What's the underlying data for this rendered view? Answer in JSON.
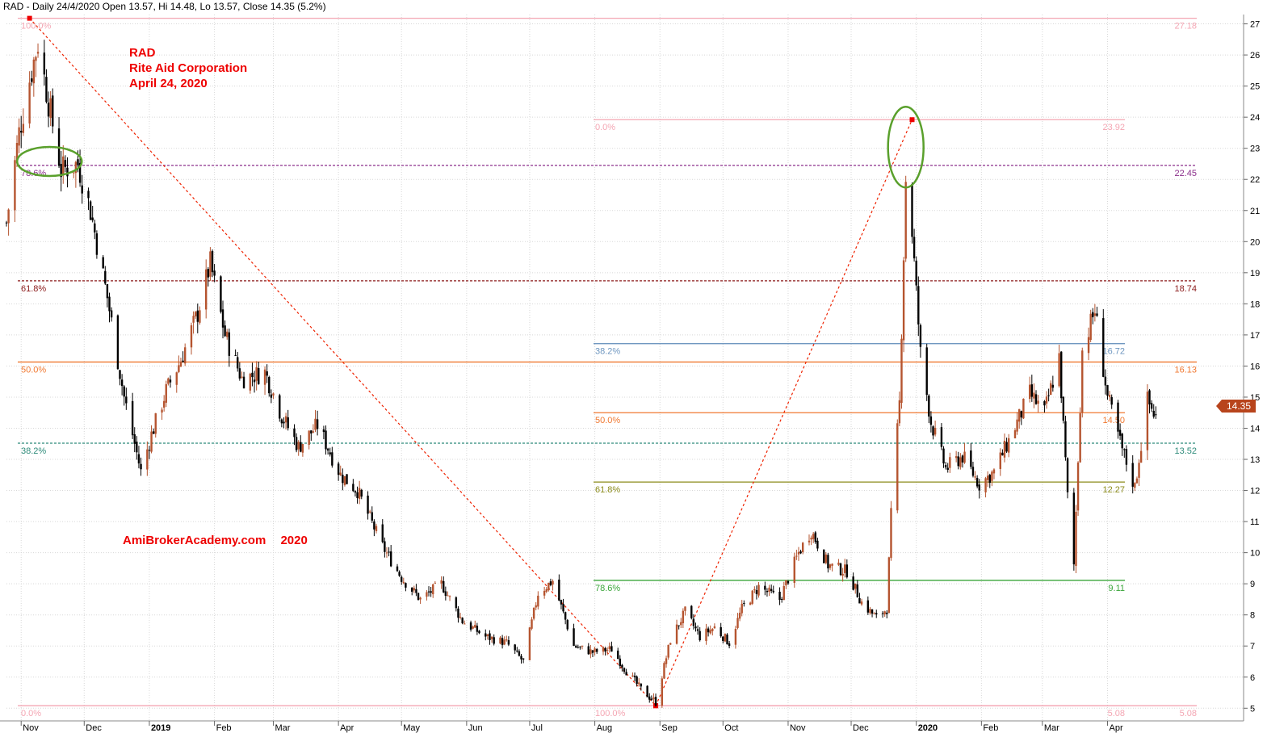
{
  "header": {
    "text": "RAD - Daily 24/4/2020 Open 13.57, Hi 14.48, Lo 13.57, Close 14.35 (5.2%)"
  },
  "annotation": {
    "symbol": "RAD",
    "company": "Rite Aid Corporation",
    "date": "April 24, 2020"
  },
  "watermark": {
    "site": "AmiBrokerAcademy.com",
    "year": "2020"
  },
  "last_price_label": "14.35",
  "colors": {
    "up": "#b5542f",
    "down": "#000000",
    "grid": "#d8d8d8",
    "trend_line": "#ee2200",
    "circle": "#5aa02c",
    "price_tag": "#b8441c"
  },
  "chart_data": {
    "type": "candlestick",
    "yaxis_ticks": [
      "5",
      "6",
      "7",
      "8",
      "9",
      "10",
      "11",
      "12",
      "13",
      "14",
      "15",
      "16",
      "17",
      "18",
      "19",
      "20",
      "21",
      "22",
      "23",
      "24",
      "25",
      "26",
      "27"
    ],
    "ylim": [
      4.8,
      27.3
    ],
    "xaxis_ticks": [
      "Nov",
      "Dec",
      "2019",
      "Feb",
      "Mar",
      "Apr",
      "May",
      "Jun",
      "Jul",
      "Aug",
      "Sep",
      "Oct",
      "Nov",
      "Dec",
      "2020",
      "Feb",
      "Mar",
      "Apr"
    ],
    "bold_ticks": [
      "2019",
      "2020"
    ],
    "xlim": [
      "2018-10-25",
      "2020-05-25"
    ],
    "fib_set_1": {
      "from": {
        "date": "2018-11-05",
        "price": 27.18
      },
      "to": {
        "date": "2019-08-30",
        "price": 5.08
      },
      "levels": [
        {
          "pct": "100.0%",
          "price": "27.18",
          "color": "#f4a6b3"
        },
        {
          "pct": "78.6%",
          "price": "22.45",
          "color": "#8b2f8b"
        },
        {
          "pct": "61.8%",
          "price": "18.74",
          "color": "#8b1a1a"
        },
        {
          "pct": "50.0%",
          "price": "16.13",
          "color": "#f07830"
        },
        {
          "pct": "38.2%",
          "price": "13.52",
          "color": "#2e8b7a"
        },
        {
          "pct": "0.0%",
          "price": "5.08",
          "color": "#f4a6b3"
        }
      ]
    },
    "fib_set_2": {
      "from": {
        "date": "2019-08-30",
        "price": 5.08
      },
      "to": {
        "date": "2019-12-30",
        "price": 23.92
      },
      "levels": [
        {
          "pct": "0.0%",
          "price": "23.92",
          "color": "#f4a6b3"
        },
        {
          "pct": "38.2%",
          "price": "16.72",
          "color": "#6f97c0"
        },
        {
          "pct": "50.0%",
          "price": "14.50",
          "color": "#f07830"
        },
        {
          "pct": "61.8%",
          "price": "12.27",
          "color": "#8b8b1a"
        },
        {
          "pct": "78.6%",
          "price": "9.11",
          "color": "#3aa53a"
        },
        {
          "pct": "100.0%",
          "price": "5.08",
          "color": "#f4a6b3"
        }
      ]
    },
    "highlight_circles": [
      {
        "date": "2018-11-16",
        "price": 22.5
      },
      {
        "date": "2019-12-27",
        "price": 22.7
      }
    ],
    "price_path": [
      [
        "2018-10-25",
        20.6
      ],
      [
        "2018-10-31",
        23.5
      ],
      [
        "2018-11-05",
        25.2
      ],
      [
        "2018-11-09",
        26.4
      ],
      [
        "2018-11-14",
        24.5
      ],
      [
        "2018-11-20",
        22.3
      ],
      [
        "2018-11-28",
        22.5
      ],
      [
        "2018-12-04",
        21.0
      ],
      [
        "2018-12-12",
        18.2
      ],
      [
        "2018-12-20",
        15.0
      ],
      [
        "2018-12-28",
        12.6
      ],
      [
        "2019-01-02",
        13.8
      ],
      [
        "2019-01-09",
        15.2
      ],
      [
        "2019-01-16",
        16.2
      ],
      [
        "2019-01-24",
        17.7
      ],
      [
        "2019-01-30",
        19.3
      ],
      [
        "2019-02-06",
        17.0
      ],
      [
        "2019-02-14",
        15.6
      ],
      [
        "2019-02-25",
        15.8
      ],
      [
        "2019-03-05",
        14.4
      ],
      [
        "2019-03-13",
        13.4
      ],
      [
        "2019-03-22",
        14.1
      ],
      [
        "2019-04-02",
        12.5
      ],
      [
        "2019-04-10",
        12.0
      ],
      [
        "2019-04-22",
        10.2
      ],
      [
        "2019-05-01",
        9.2
      ],
      [
        "2019-05-10",
        8.5
      ],
      [
        "2019-05-20",
        9.0
      ],
      [
        "2019-05-30",
        7.8
      ],
      [
        "2019-06-10",
        7.3
      ],
      [
        "2019-06-20",
        7.1
      ],
      [
        "2019-06-28",
        6.5
      ],
      [
        "2019-07-05",
        8.7
      ],
      [
        "2019-07-12",
        9.1
      ],
      [
        "2019-07-22",
        7.0
      ],
      [
        "2019-07-31",
        6.8
      ],
      [
        "2019-08-09",
        6.9
      ],
      [
        "2019-08-16",
        6.2
      ],
      [
        "2019-08-23",
        5.6
      ],
      [
        "2019-08-30",
        5.2
      ],
      [
        "2019-09-06",
        7.2
      ],
      [
        "2019-09-13",
        8.1
      ],
      [
        "2019-09-20",
        7.3
      ],
      [
        "2019-09-27",
        7.6
      ],
      [
        "2019-10-04",
        7.1
      ],
      [
        "2019-10-10",
        8.2
      ],
      [
        "2019-10-18",
        8.9
      ],
      [
        "2019-10-28",
        8.5
      ],
      [
        "2019-11-06",
        10.0
      ],
      [
        "2019-11-12",
        10.7
      ],
      [
        "2019-11-20",
        9.6
      ],
      [
        "2019-11-29",
        9.4
      ],
      [
        "2019-12-06",
        8.4
      ],
      [
        "2019-12-13",
        7.9
      ],
      [
        "2019-12-18",
        8.2
      ],
      [
        "2019-12-20",
        11.2
      ],
      [
        "2019-12-24",
        14.8
      ],
      [
        "2019-12-27",
        22.0
      ],
      [
        "2019-12-30",
        20.3
      ],
      [
        "2020-01-03",
        16.4
      ],
      [
        "2020-01-08",
        14.2
      ],
      [
        "2020-01-15",
        12.7
      ],
      [
        "2020-01-23",
        13.1
      ],
      [
        "2020-01-31",
        12.2
      ],
      [
        "2020-02-07",
        12.6
      ],
      [
        "2020-02-14",
        13.6
      ],
      [
        "2020-02-24",
        15.1
      ],
      [
        "2020-03-02",
        14.5
      ],
      [
        "2020-03-09",
        16.3
      ],
      [
        "2020-03-13",
        11.8
      ],
      [
        "2020-03-16",
        9.6
      ],
      [
        "2020-03-20",
        16.5
      ],
      [
        "2020-03-26",
        17.8
      ],
      [
        "2020-04-01",
        15.0
      ],
      [
        "2020-04-08",
        13.3
      ],
      [
        "2020-04-14",
        12.1
      ],
      [
        "2020-04-20",
        14.9
      ],
      [
        "2020-04-24",
        14.35
      ]
    ]
  }
}
